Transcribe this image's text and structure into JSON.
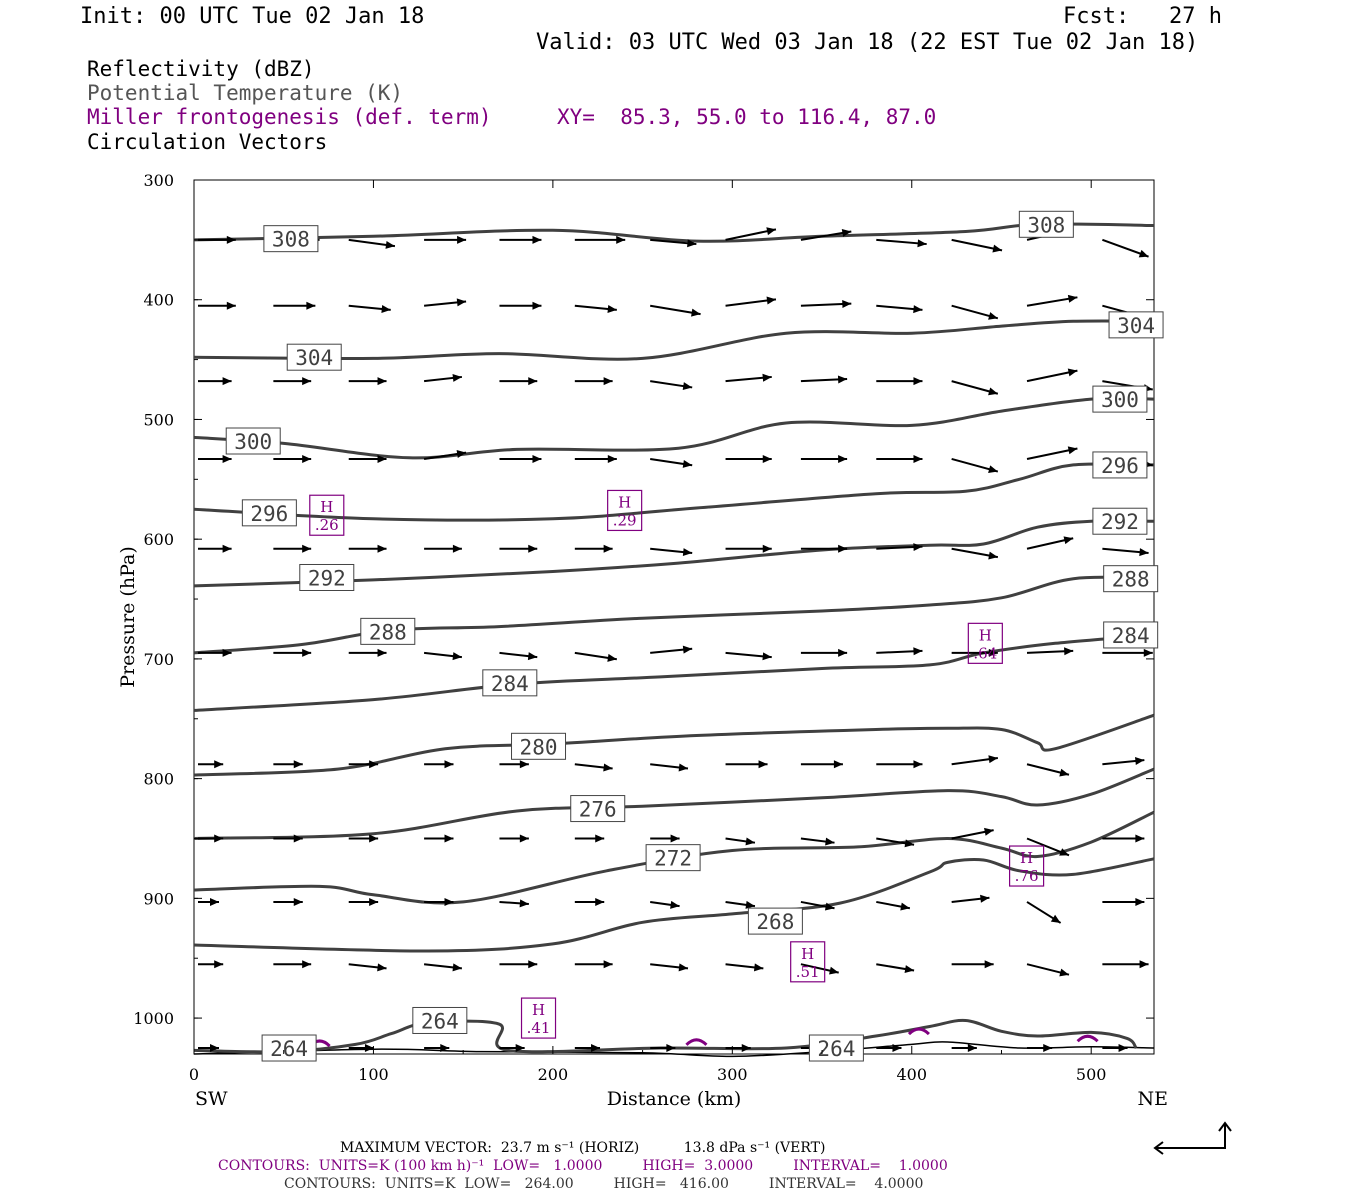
{
  "header": {
    "init": "Init: 00 UTC Tue 02 Jan 18",
    "fcst": "Fcst:   27 h",
    "valid": "Valid: 03 UTC Wed 03 Jan 18 (22 EST Tue 02 Jan 18)"
  },
  "legend": {
    "reflectivity": "Reflectivity (dBZ)",
    "theta": "Potential Temperature (K)",
    "miller": "Miller frontogenesis (def. term)",
    "xy": "XY=  85.3, 55.0 to 116.4, 87.0",
    "circulation": "Circulation Vectors"
  },
  "colors": {
    "contour": "#404040",
    "frontogenesis": "#800080",
    "vector": "#000000"
  },
  "chart_data": {
    "type": "cross-section",
    "xlabel": "Distance (km)",
    "ylabel": "Pressure (hPa)",
    "xlim": [
      0,
      535
    ],
    "ylim": [
      300,
      1030
    ],
    "xticks": [
      0,
      100,
      200,
      300,
      400,
      500
    ],
    "yticks": [
      300,
      400,
      500,
      600,
      700,
      800,
      900,
      1000
    ],
    "x_end_labels": [
      "SW",
      "NE"
    ],
    "theta_contours": [
      {
        "level": 308,
        "points": [
          [
            0,
            350
          ],
          [
            100,
            347
          ],
          [
            200,
            342
          ],
          [
            280,
            351
          ],
          [
            350,
            347
          ],
          [
            430,
            343
          ],
          [
            470,
            337
          ],
          [
            535,
            338
          ]
        ],
        "labels": [
          [
            54,
            349
          ],
          [
            475,
            337
          ]
        ]
      },
      {
        "level": 304,
        "points": [
          [
            0,
            448
          ],
          [
            100,
            449
          ],
          [
            170,
            445
          ],
          [
            250,
            449
          ],
          [
            330,
            428
          ],
          [
            400,
            428
          ],
          [
            450,
            422
          ],
          [
            490,
            418
          ],
          [
            535,
            418
          ]
        ],
        "labels": [
          [
            67,
            448
          ],
          [
            525,
            421
          ]
        ]
      },
      {
        "level": 300,
        "points": [
          [
            0,
            515
          ],
          [
            50,
            520
          ],
          [
            120,
            532
          ],
          [
            180,
            525
          ],
          [
            270,
            524
          ],
          [
            330,
            503
          ],
          [
            400,
            505
          ],
          [
            450,
            493
          ],
          [
            500,
            483
          ],
          [
            535,
            483
          ]
        ],
        "labels": [
          [
            33,
            518
          ],
          [
            516,
            483
          ]
        ]
      },
      {
        "level": 296,
        "points": [
          [
            0,
            575
          ],
          [
            100,
            583
          ],
          [
            200,
            583
          ],
          [
            280,
            574
          ],
          [
            380,
            562
          ],
          [
            430,
            560
          ],
          [
            460,
            550
          ],
          [
            490,
            538
          ],
          [
            535,
            538
          ]
        ],
        "labels": [
          [
            42,
            578
          ],
          [
            516,
            538
          ]
        ]
      },
      {
        "level": 292,
        "points": [
          [
            0,
            639
          ],
          [
            100,
            634
          ],
          [
            200,
            627
          ],
          [
            270,
            620
          ],
          [
            350,
            609
          ],
          [
            410,
            605
          ],
          [
            440,
            604
          ],
          [
            470,
            590
          ],
          [
            500,
            585
          ],
          [
            535,
            585
          ]
        ],
        "labels": [
          [
            74,
            632
          ],
          [
            516,
            585
          ]
        ]
      },
      {
        "level": 288,
        "points": [
          [
            0,
            695
          ],
          [
            60,
            688
          ],
          [
            110,
            676
          ],
          [
            170,
            673
          ],
          [
            250,
            666
          ],
          [
            350,
            660
          ],
          [
            410,
            655
          ],
          [
            450,
            649
          ],
          [
            490,
            633
          ],
          [
            535,
            633
          ]
        ],
        "labels": [
          [
            108,
            677
          ],
          [
            522,
            633
          ]
        ]
      },
      {
        "level": 284,
        "points": [
          [
            0,
            743
          ],
          [
            100,
            734
          ],
          [
            180,
            721
          ],
          [
            260,
            715
          ],
          [
            350,
            708
          ],
          [
            410,
            705
          ],
          [
            440,
            695
          ],
          [
            480,
            687
          ],
          [
            535,
            680
          ]
        ],
        "labels": [
          [
            176,
            720
          ],
          [
            522,
            680
          ]
        ]
      },
      {
        "level": 280,
        "points": [
          [
            0,
            797
          ],
          [
            80,
            792
          ],
          [
            140,
            775
          ],
          [
            200,
            771
          ],
          [
            280,
            764
          ],
          [
            380,
            759
          ],
          [
            420,
            758
          ],
          [
            450,
            759
          ],
          [
            470,
            770
          ],
          [
            480,
            775
          ],
          [
            535,
            747
          ]
        ],
        "labels": [
          [
            192,
            773
          ]
        ]
      },
      {
        "level": 276,
        "points": [
          [
            0,
            850
          ],
          [
            100,
            846
          ],
          [
            180,
            827
          ],
          [
            250,
            823
          ],
          [
            350,
            816
          ],
          [
            420,
            810
          ],
          [
            450,
            815
          ],
          [
            470,
            822
          ],
          [
            500,
            813
          ],
          [
            535,
            792
          ]
        ],
        "labels": [
          [
            225,
            825
          ]
        ]
      },
      {
        "level": 272,
        "points": [
          [
            0,
            893
          ],
          [
            70,
            890
          ],
          [
            100,
            897
          ],
          [
            150,
            903
          ],
          [
            230,
            877
          ],
          [
            300,
            860
          ],
          [
            370,
            857
          ],
          [
            420,
            850
          ],
          [
            450,
            858
          ],
          [
            470,
            865
          ],
          [
            500,
            853
          ],
          [
            535,
            828
          ]
        ],
        "labels": [
          [
            267,
            866
          ]
        ]
      },
      {
        "level": 268,
        "points": [
          [
            0,
            939
          ],
          [
            130,
            944
          ],
          [
            200,
            938
          ],
          [
            250,
            920
          ],
          [
            300,
            913
          ],
          [
            360,
            904
          ],
          [
            410,
            878
          ],
          [
            420,
            870
          ],
          [
            440,
            868
          ],
          [
            460,
            877
          ],
          [
            490,
            880
          ],
          [
            535,
            867
          ]
        ],
        "labels": [
          [
            324,
            919
          ]
        ]
      },
      {
        "level": 264,
        "points": [
          [
            0,
            1027
          ],
          [
            50,
            1028
          ],
          [
            90,
            1022
          ],
          [
            110,
            1013
          ],
          [
            130,
            1004
          ],
          [
            170,
            1005
          ],
          [
            175,
            1027
          ],
          [
            260,
            1025
          ],
          [
            330,
            1025
          ],
          [
            380,
            1015
          ],
          [
            410,
            1007
          ],
          [
            430,
            1002
          ],
          [
            450,
            1011
          ],
          [
            470,
            1015
          ],
          [
            500,
            1012
          ],
          [
            520,
            1017
          ],
          [
            525,
            1025
          ]
        ],
        "labels": [
          [
            53,
            1025
          ],
          [
            137,
            1002
          ],
          [
            358,
            1025
          ]
        ]
      }
    ],
    "ground_line": [
      [
        0,
        1030
      ],
      [
        100,
        1026
      ],
      [
        160,
        1028
      ],
      [
        250,
        1029
      ],
      [
        300,
        1032
      ],
      [
        350,
        1028
      ],
      [
        400,
        1022
      ],
      [
        420,
        1020
      ],
      [
        460,
        1025
      ],
      [
        500,
        1024
      ],
      [
        535,
        1025
      ]
    ],
    "frontogenesis_maxima": [
      {
        "label": "H",
        "value": ".26",
        "x": 74,
        "p": 580
      },
      {
        "label": "H",
        "value": ".29",
        "x": 240,
        "p": 576
      },
      {
        "label": "H",
        "value": ".64",
        "x": 441,
        "p": 687
      },
      {
        "label": "H",
        "value": ".76",
        "x": 464,
        "p": 873
      },
      {
        "label": "H",
        "value": ".51",
        "x": 342,
        "p": 953
      },
      {
        "label": "H",
        "value": ".41",
        "x": 192,
        "p": 1000
      }
    ],
    "frontogenesis_ticks": [
      [
        70,
        1020
      ],
      [
        280,
        1019
      ],
      [
        404,
        1010
      ],
      [
        498,
        1016
      ]
    ],
    "vectors": [
      {
        "p": 350,
        "x": [
          0,
          42,
          84,
          126,
          168,
          210,
          252,
          294,
          336,
          378,
          420,
          462,
          504
        ],
        "u": [
          18,
          22,
          22,
          20,
          20,
          24,
          22,
          24,
          24,
          24,
          24,
          22,
          22
        ],
        "w": [
          0,
          0,
          -3,
          0,
          0,
          0,
          -2,
          5,
          4,
          -2,
          -5,
          5,
          -8
        ]
      },
      {
        "p": 405,
        "x": [
          0,
          42,
          84,
          126,
          168,
          210,
          252,
          294,
          336,
          378,
          420,
          462,
          504
        ],
        "u": [
          18,
          20,
          20,
          20,
          20,
          20,
          24,
          24,
          24,
          22,
          22,
          24,
          22
        ],
        "w": [
          0,
          0,
          -2,
          2,
          0,
          -2,
          -4,
          3,
          1,
          -2,
          -6,
          4,
          -6
        ]
      },
      {
        "p": 468,
        "x": [
          0,
          42,
          84,
          126,
          168,
          210,
          252,
          294,
          336,
          378,
          420,
          462,
          504
        ],
        "u": [
          16,
          18,
          18,
          18,
          18,
          18,
          20,
          22,
          22,
          22,
          22,
          24,
          24
        ],
        "w": [
          0,
          0,
          0,
          2,
          0,
          0,
          -3,
          2,
          1,
          0,
          -6,
          5,
          -4
        ]
      },
      {
        "p": 533,
        "x": [
          0,
          42,
          84,
          126,
          168,
          210,
          252,
          294,
          336,
          378,
          420,
          462,
          504
        ],
        "u": [
          16,
          18,
          18,
          20,
          20,
          20,
          20,
          22,
          22,
          22,
          22,
          24,
          24
        ],
        "w": [
          0,
          0,
          0,
          3,
          0,
          0,
          -3,
          0,
          0,
          0,
          -6,
          5,
          -3
        ]
      },
      {
        "p": 608,
        "x": [
          0,
          42,
          84,
          126,
          168,
          210,
          252,
          294,
          336,
          378,
          420,
          462,
          504
        ],
        "u": [
          16,
          18,
          18,
          18,
          18,
          18,
          20,
          22,
          22,
          22,
          22,
          22,
          22
        ],
        "w": [
          0,
          0,
          0,
          0,
          0,
          0,
          -2,
          0,
          0,
          1,
          -4,
          5,
          -2
        ]
      },
      {
        "p": 695,
        "x": [
          0,
          42,
          84,
          126,
          168,
          210,
          252,
          294,
          336,
          378,
          420,
          462,
          504
        ],
        "u": [
          16,
          18,
          18,
          18,
          18,
          20,
          20,
          22,
          22,
          22,
          22,
          22,
          24
        ],
        "w": [
          0,
          0,
          0,
          -2,
          -2,
          -3,
          2,
          -2,
          0,
          1,
          0,
          1,
          0
        ]
      },
      {
        "p": 788,
        "x": [
          0,
          42,
          84,
          126,
          168,
          210,
          252,
          294,
          336,
          378,
          420,
          462,
          504
        ],
        "u": [
          12,
          14,
          14,
          14,
          14,
          18,
          18,
          20,
          20,
          22,
          22,
          20,
          20
        ],
        "w": [
          0,
          0,
          0,
          0,
          0,
          -2,
          -2,
          0,
          0,
          0,
          3,
          -5,
          2
        ]
      },
      {
        "p": 850,
        "x": [
          0,
          42,
          84,
          126,
          168,
          210,
          252,
          294,
          336,
          378,
          420,
          462,
          504
        ],
        "u": [
          12,
          14,
          14,
          14,
          14,
          14,
          14,
          14,
          16,
          18,
          20,
          20,
          20
        ],
        "w": [
          0,
          0,
          0,
          0,
          0,
          0,
          0,
          -2,
          -2,
          -3,
          4,
          -8,
          0
        ]
      },
      {
        "p": 903,
        "x": [
          0,
          42,
          84,
          126,
          168,
          210,
          252,
          294,
          336,
          378,
          420,
          462,
          504
        ],
        "u": [
          10,
          14,
          14,
          14,
          14,
          14,
          14,
          14,
          16,
          16,
          18,
          16,
          20
        ],
        "w": [
          0,
          0,
          0,
          0,
          -1,
          0,
          -2,
          -2,
          -3,
          -3,
          2,
          -10,
          0
        ]
      },
      {
        "p": 955,
        "x": [
          0,
          42,
          84,
          126,
          168,
          210,
          252,
          294,
          336,
          378,
          420,
          462,
          504
        ],
        "u": [
          12,
          18,
          18,
          18,
          18,
          18,
          18,
          18,
          18,
          18,
          20,
          20,
          22
        ],
        "w": [
          0,
          0,
          -2,
          -2,
          0,
          0,
          -2,
          -2,
          -4,
          -3,
          0,
          -5,
          0
        ]
      },
      {
        "p": 1025,
        "x": [
          0,
          42,
          84,
          126,
          168,
          210,
          252,
          294,
          336,
          378,
          420,
          462,
          504
        ],
        "u": [
          10,
          12,
          12,
          12,
          12,
          12,
          12,
          12,
          12,
          12,
          12,
          12,
          12
        ],
        "w": [
          0,
          0,
          0,
          0,
          0,
          0,
          0,
          0,
          0,
          0,
          0,
          0,
          0
        ]
      }
    ]
  },
  "footer": {
    "max_vector": "MAXIMUM VECTOR:  23.7 m s⁻¹ (HORIZ)          13.8 dPa s⁻¹ (VERT)",
    "contours_purple": "CONTOURS:  UNITS=K (100 km h)⁻¹  LOW=   1.0000         HIGH=  3.0000         INTERVAL=    1.0000",
    "contours_black": "CONTOURS:  UNITS=K  LOW=   264.00         HIGH=   416.00         INTERVAL=    4.0000"
  }
}
